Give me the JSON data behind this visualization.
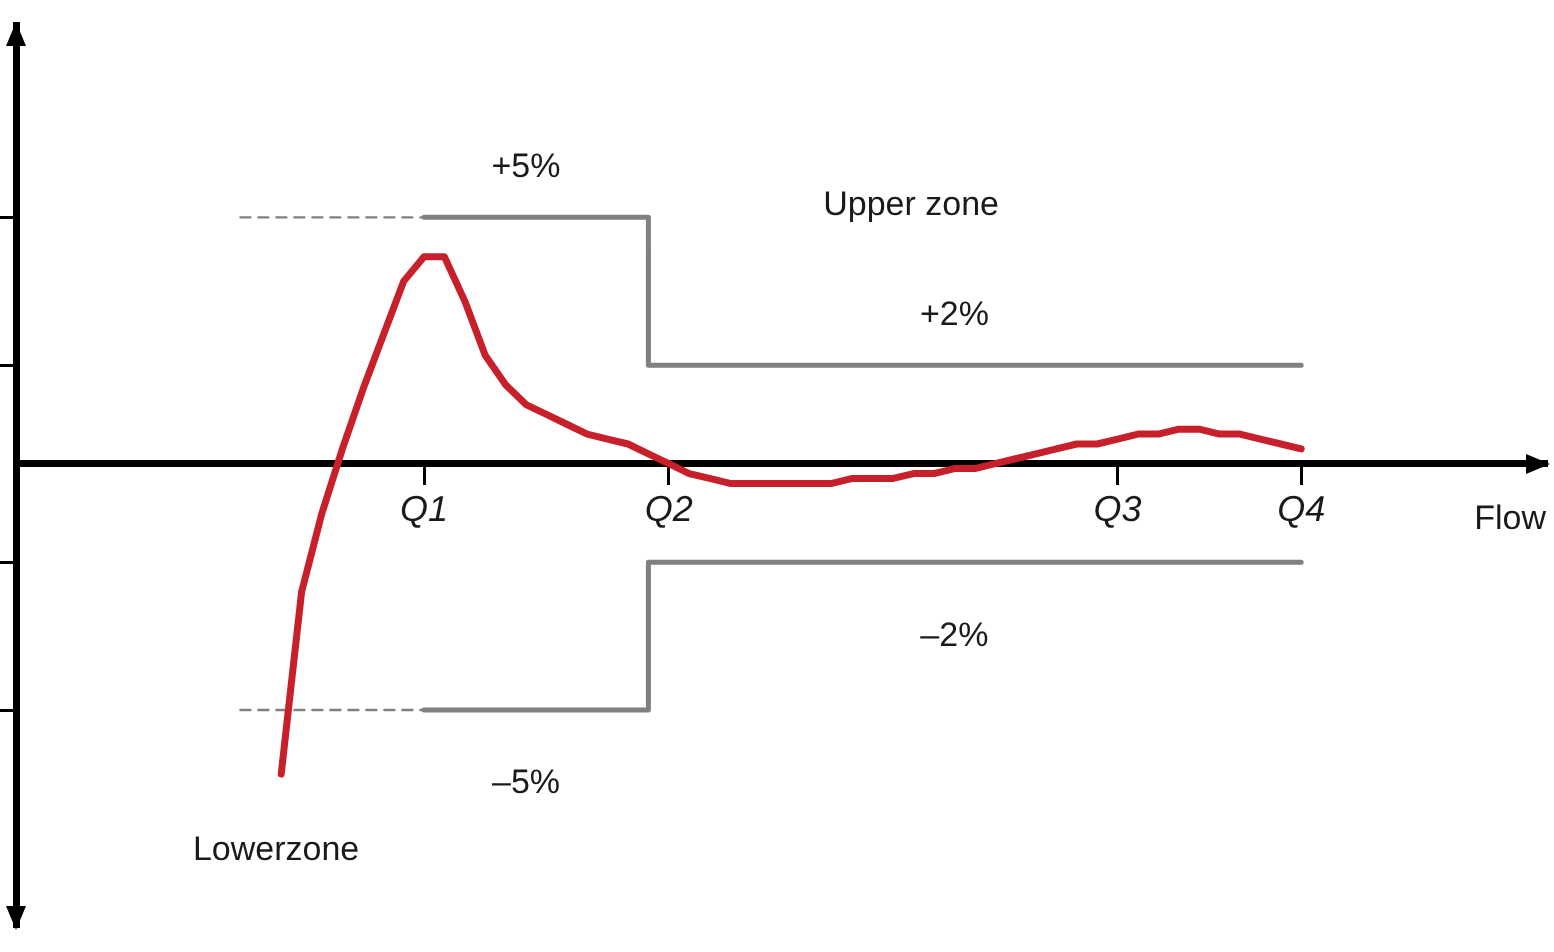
{
  "chart_data": {
    "type": "line",
    "xlabel": "Flow",
    "categories": [
      null,
      null,
      null,
      null,
      null,
      null,
      null,
      null,
      null,
      null,
      null,
      null,
      null,
      null,
      null,
      null,
      null,
      null,
      null,
      null,
      "Q1",
      null,
      null,
      null,
      null,
      null,
      null,
      null,
      null,
      null,
      null,
      null,
      "Q2",
      null,
      null,
      null,
      null,
      null,
      null,
      null,
      null,
      null,
      null,
      null,
      null,
      null,
      null,
      null,
      null,
      null,
      null,
      null,
      null,
      null,
      "Q3",
      null,
      null,
      null,
      null,
      null,
      null,
      null,
      null,
      "Q4",
      null,
      null,
      null,
      null,
      null,
      null,
      null,
      null,
      null,
      null,
      null,
      null
    ],
    "ylim": [
      -9.4,
      8.9
    ],
    "yticks": [
      {
        "value": -5,
        "label": null
      },
      {
        "value": -2,
        "label": null
      },
      {
        "value": 2,
        "label": null
      },
      {
        "value": 5,
        "label": null
      }
    ],
    "series": [
      {
        "color": "#c8202a",
        "values": [
          null,
          null,
          null,
          null,
          null,
          null,
          null,
          null,
          null,
          null,
          null,
          null,
          null,
          -6.3,
          -2.6,
          -1.0,
          0.3,
          1.5,
          2.6,
          3.7,
          4.2,
          4.2,
          3.3,
          2.2,
          1.6,
          1.2,
          1.0,
          0.8,
          0.6,
          0.5,
          0.4,
          0.2,
          0.0,
          -0.2,
          -0.3,
          -0.4,
          -0.4,
          -0.4,
          -0.4,
          -0.4,
          -0.4,
          -0.3,
          -0.3,
          -0.3,
          -0.2,
          -0.2,
          -0.1,
          -0.1,
          0.0,
          0.1,
          0.2,
          0.3,
          0.4,
          0.4,
          0.5,
          0.6,
          0.6,
          0.7,
          0.7,
          0.6,
          0.6,
          0.5,
          0.4,
          0.3,
          null,
          null,
          null,
          null,
          null,
          null,
          null,
          null,
          null,
          null,
          null,
          null
        ]
      },
      {
        "type": "step",
        "color": "#808080",
        "values": [
          null,
          null,
          null,
          null,
          null,
          null,
          null,
          null,
          null,
          null,
          null,
          null,
          null,
          null,
          null,
          null,
          null,
          null,
          null,
          null,
          5,
          5,
          5,
          5,
          5,
          5,
          5,
          5,
          5,
          5,
          5,
          5,
          2,
          2,
          2,
          2,
          2,
          2,
          2,
          2,
          2,
          2,
          2,
          2,
          2,
          2,
          2,
          2,
          2,
          2,
          2,
          2,
          2,
          2,
          2,
          2,
          2,
          2,
          2,
          2,
          2,
          2,
          2,
          2,
          null,
          null,
          null,
          null,
          null,
          null,
          null,
          null,
          null,
          null,
          null,
          null
        ],
        "value_labels": [
          null,
          null,
          null,
          null,
          null,
          null,
          null,
          null,
          null,
          null,
          null,
          null,
          null,
          null,
          null,
          null,
          null,
          null,
          null,
          null,
          null,
          null,
          null,
          null,
          null,
          "+5%",
          null,
          null,
          null,
          null,
          null,
          null,
          null,
          null,
          null,
          null,
          null,
          null,
          null,
          null,
          null,
          null,
          null,
          null,
          null,
          null,
          "+2%",
          null,
          null,
          null,
          null,
          null,
          null,
          null,
          null,
          null,
          null,
          null,
          null,
          null,
          null,
          null,
          null,
          null,
          null,
          null,
          null,
          null,
          null,
          null,
          null,
          null,
          null,
          null,
          null,
          null
        ]
      },
      {
        "type": "step",
        "color": "#808080",
        "values": [
          null,
          null,
          null,
          null,
          null,
          null,
          null,
          null,
          null,
          null,
          null,
          null,
          null,
          null,
          null,
          null,
          null,
          null,
          null,
          null,
          -5,
          -5,
          -5,
          -5,
          -5,
          -5,
          -5,
          -5,
          -5,
          -5,
          -5,
          -5,
          -2,
          -2,
          -2,
          -2,
          -2,
          -2,
          -2,
          -2,
          -2,
          -2,
          -2,
          -2,
          -2,
          -2,
          -2,
          -2,
          -2,
          -2,
          -2,
          -2,
          -2,
          -2,
          -2,
          -2,
          -2,
          -2,
          -2,
          -2,
          -2,
          -2,
          -2,
          -2,
          null,
          null,
          null,
          null,
          null,
          null,
          null,
          null,
          null,
          null,
          null,
          null
        ],
        "value_labels": [
          null,
          null,
          null,
          null,
          null,
          null,
          null,
          null,
          null,
          null,
          null,
          null,
          null,
          null,
          null,
          null,
          null,
          null,
          null,
          null,
          null,
          null,
          null,
          null,
          null,
          "–5%",
          null,
          null,
          null,
          null,
          null,
          null,
          null,
          null,
          null,
          null,
          null,
          null,
          null,
          null,
          null,
          null,
          null,
          null,
          null,
          null,
          "–2%",
          null,
          null,
          null,
          null,
          null,
          null,
          null,
          null,
          null,
          null,
          null,
          null,
          null,
          null,
          null,
          null,
          null,
          null,
          null,
          null,
          null,
          null,
          null,
          null,
          null,
          null,
          null,
          null,
          null
        ]
      },
      {
        "color": "#808080",
        "line_style": "dashed",
        "values": [
          null,
          null,
          null,
          null,
          null,
          null,
          null,
          null,
          null,
          null,
          null,
          5,
          5,
          5,
          5,
          5,
          5,
          5,
          5,
          5,
          5,
          null,
          null,
          null,
          null,
          null,
          null,
          null,
          null,
          null,
          null,
          null,
          null,
          null,
          null,
          null,
          null,
          null,
          null,
          null,
          null,
          null,
          null,
          null,
          null,
          null,
          null,
          null,
          null,
          null,
          null,
          null,
          null,
          null,
          null,
          null,
          null,
          null,
          null,
          null,
          null,
          null,
          null,
          null,
          null,
          null,
          null,
          null,
          null,
          null,
          null,
          null,
          null,
          null,
          null,
          null
        ]
      },
      {
        "color": "#808080",
        "line_style": "dashed",
        "values": [
          null,
          null,
          null,
          null,
          null,
          null,
          null,
          null,
          null,
          null,
          null,
          -5,
          -5,
          -5,
          -5,
          -5,
          -5,
          -5,
          -5,
          -5,
          -5,
          null,
          null,
          null,
          null,
          null,
          null,
          null,
          null,
          null,
          null,
          null,
          null,
          null,
          null,
          null,
          null,
          null,
          null,
          null,
          null,
          null,
          null,
          null,
          null,
          null,
          null,
          null,
          null,
          null,
          null,
          null,
          null,
          null,
          null,
          null,
          null,
          null,
          null,
          null,
          null,
          null,
          null,
          null,
          null,
          null,
          null,
          null,
          null,
          null,
          null,
          null,
          null,
          null,
          null,
          null
        ]
      }
    ],
    "annotations": [
      "Upper zone",
      "Lowerzone"
    ],
    "grid": false,
    "legend": false,
    "marker": "none"
  }
}
